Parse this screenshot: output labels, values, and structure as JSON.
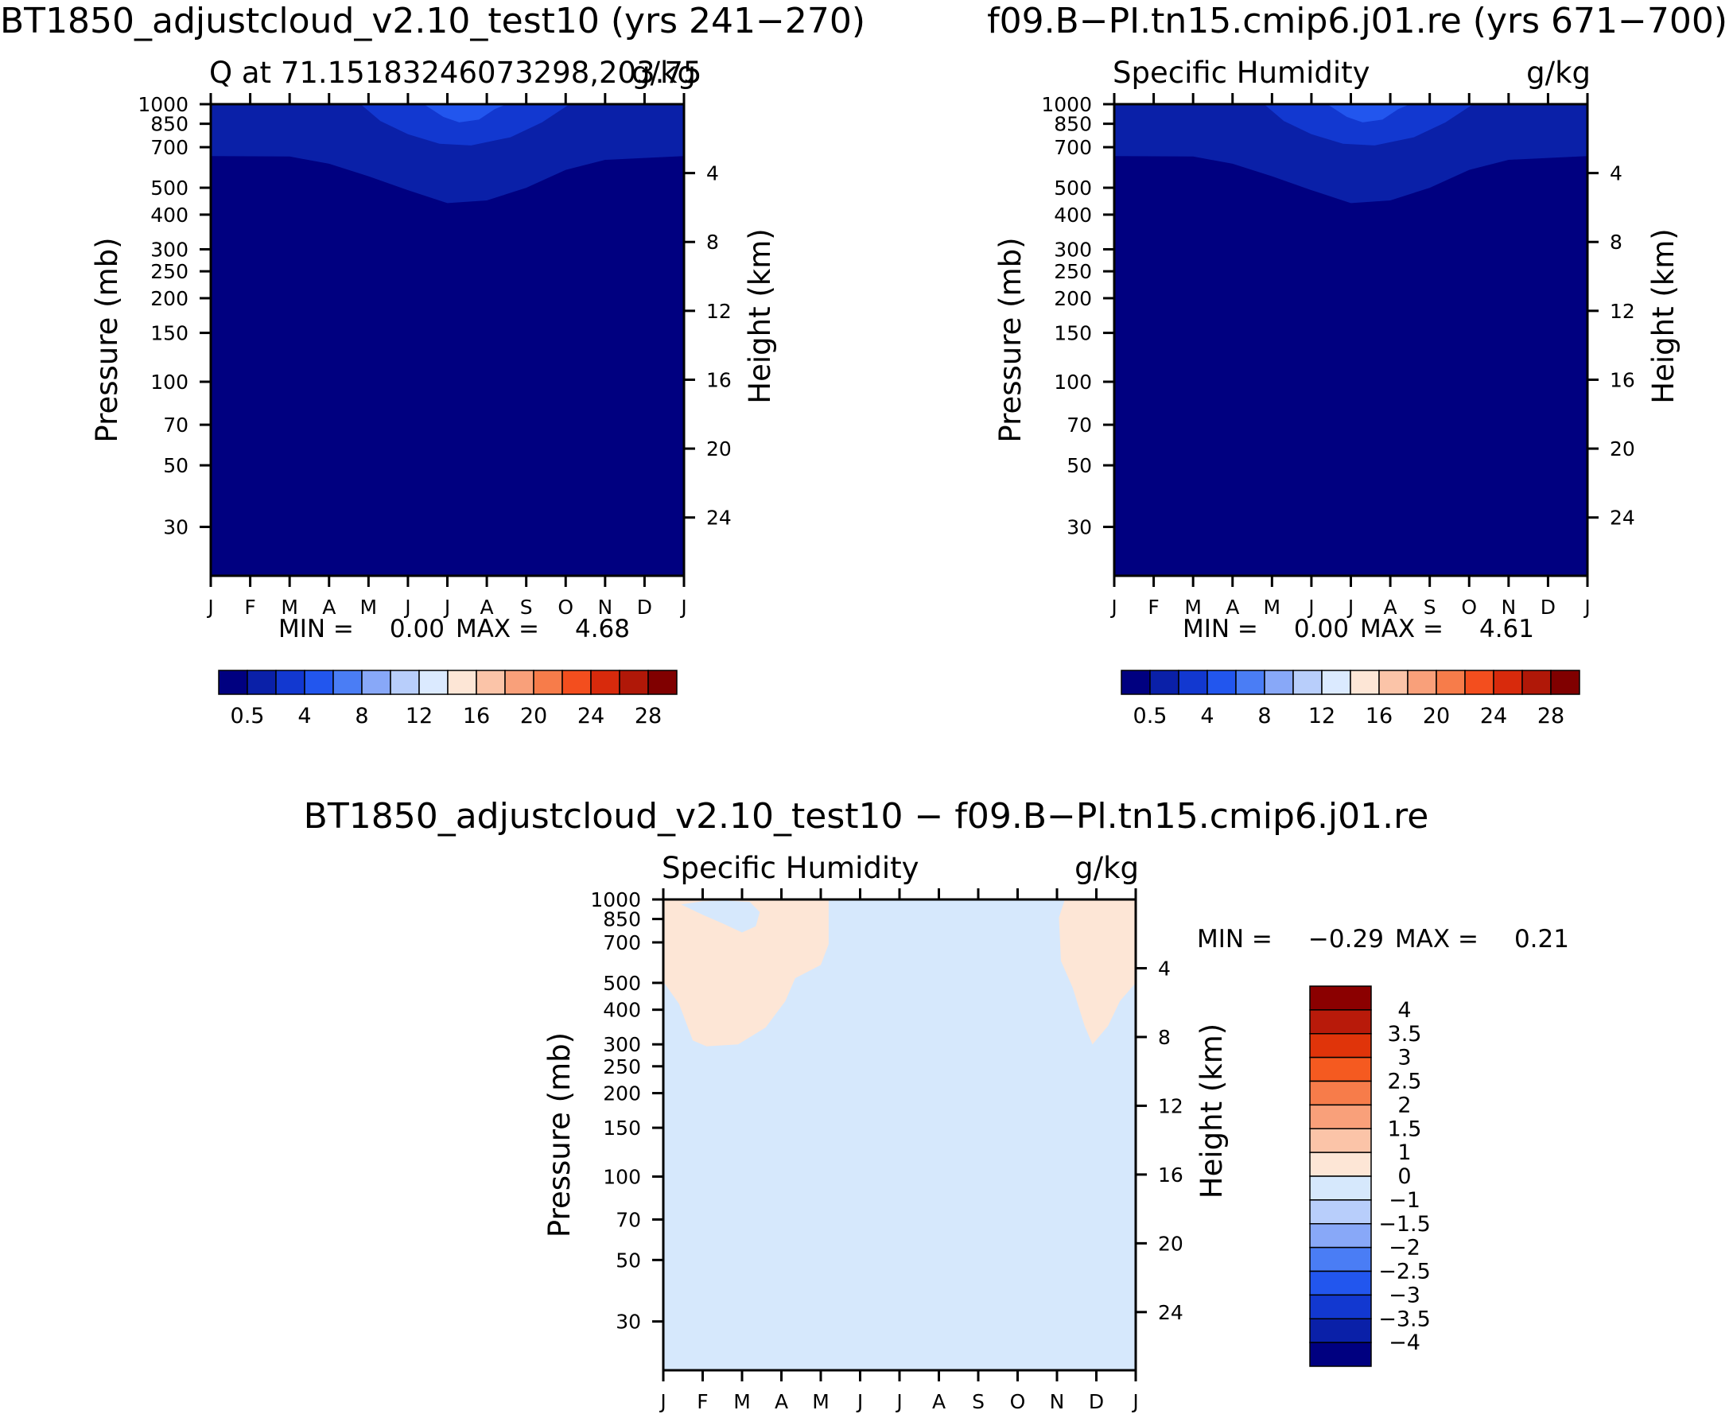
{
  "chart_data": [
    {
      "type": "contour",
      "figure_title": "BT1850_adjustcloud_v2.10_test10 (yrs 241−270)",
      "subtitle_left": "Q at 71.15183246073298,203.75",
      "subtitle_right": "g/kg",
      "xlabel": "",
      "ylabel": "Pressure (mb)",
      "ylabel_right": "Height (km)",
      "x_ticks": [
        "J",
        "F",
        "M",
        "A",
        "M",
        "J",
        "J",
        "A",
        "S",
        "O",
        "N",
        "D",
        "J"
      ],
      "y_ticks": [
        "30",
        "50",
        "70",
        "100",
        "150",
        "200",
        "250",
        "300",
        "400",
        "500",
        "700",
        "850",
        "1000"
      ],
      "y_ticks_right": [
        "24",
        "20",
        "16",
        "12",
        "8",
        "4"
      ],
      "min_label": "MIN =",
      "min_value": "0.00",
      "max_label": "MAX =",
      "max_value": "4.68",
      "colorbar_labels": [
        "0.5",
        "4",
        "8",
        "12",
        "16",
        "20",
        "24",
        "28"
      ],
      "contour_levels": [
        0.5,
        1,
        2,
        3,
        4
      ],
      "field_description": "Specific humidity peaks near surface in July (~4.7 g/kg), near 0 above ~400 mb"
    },
    {
      "type": "contour",
      "figure_title": "f09.B−PI.tn15.cmip6.j01.re (yrs 671−700)",
      "subtitle_left": "Specific Humidity",
      "subtitle_right": "g/kg",
      "xlabel": "",
      "ylabel": "Pressure (mb)",
      "ylabel_right": "Height (km)",
      "x_ticks": [
        "J",
        "F",
        "M",
        "A",
        "M",
        "J",
        "J",
        "A",
        "S",
        "O",
        "N",
        "D",
        "J"
      ],
      "y_ticks": [
        "30",
        "50",
        "70",
        "100",
        "150",
        "200",
        "250",
        "300",
        "400",
        "500",
        "700",
        "850",
        "1000"
      ],
      "y_ticks_right": [
        "24",
        "20",
        "16",
        "12",
        "8",
        "4"
      ],
      "min_label": "MIN =",
      "min_value": "0.00",
      "max_label": "MAX =",
      "max_value": "4.61",
      "colorbar_labels": [
        "0.5",
        "4",
        "8",
        "12",
        "16",
        "20",
        "24",
        "28"
      ],
      "contour_levels": [
        0.5,
        1,
        2,
        3,
        4
      ]
    },
    {
      "type": "contour",
      "figure_title": "BT1850_adjustcloud_v2.10_test10 − f09.B−Pl.tn15.cmip6.j01.re",
      "subtitle_left": "Specific Humidity",
      "subtitle_right": "g/kg",
      "xlabel": "",
      "ylabel": "Pressure (mb)",
      "ylabel_right": "Height (km)",
      "x_ticks": [
        "J",
        "F",
        "M",
        "A",
        "M",
        "J",
        "J",
        "A",
        "S",
        "O",
        "N",
        "D",
        "J"
      ],
      "y_ticks": [
        "30",
        "50",
        "70",
        "100",
        "150",
        "200",
        "250",
        "300",
        "400",
        "500",
        "700",
        "850",
        "1000"
      ],
      "y_ticks_right": [
        "24",
        "20",
        "16",
        "12",
        "8",
        "4"
      ],
      "min_label": "MIN =",
      "min_value": "−0.29",
      "max_label": "MAX =",
      "max_value": "0.21",
      "colorbar_labels": [
        "4",
        "3.5",
        "3",
        "2.5",
        "2",
        "1.5",
        "1",
        "0",
        "−1",
        "−1.5",
        "−2",
        "−2.5",
        "−3",
        "−3.5",
        "−4"
      ],
      "field_description": "Difference mostly between -1 and 0; positive (0 to 1) pockets near surface in Jan-Apr and Dec"
    }
  ],
  "colors": {
    "seq_colorbar": [
      "#000080",
      "#0a20a8",
      "#1238d0",
      "#2256ee",
      "#4a7df5",
      "#88a8f8",
      "#b8cefb",
      "#dbeaff",
      "#fde6d6",
      "#fbc4a8",
      "#f9a07a",
      "#f77c4a",
      "#f34e1e",
      "#d82a0c",
      "#b01808",
      "#800000"
    ],
    "diff_colorbar": [
      "#8b0000",
      "#b81a0a",
      "#e0340a",
      "#f55a20",
      "#f77c4a",
      "#f9a07a",
      "#fbc4a8",
      "#fde6d6",
      "#d6e8fc",
      "#b8cefb",
      "#88a8f8",
      "#4a7df5",
      "#2256ee",
      "#1238d0",
      "#0a20a8",
      "#000080"
    ],
    "q_levels": [
      "#000080",
      "#0a20a8",
      "#1238d0",
      "#2256ee",
      "#4a7df5"
    ],
    "diff_neg": "#d6e8fc",
    "diff_pos": "#fde6d6"
  }
}
